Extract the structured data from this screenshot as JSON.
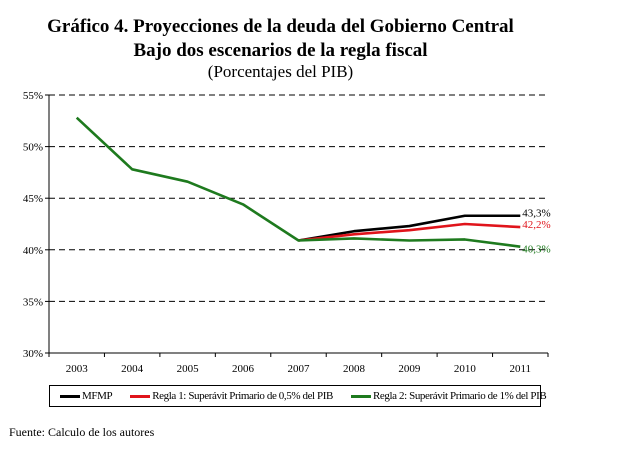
{
  "title": {
    "line1": "Gráfico 4. Proyecciones de la deuda del Gobierno Central",
    "line2": "Bajo dos escenarios de la regla fiscal",
    "line3": "(Porcentajes del PIB)"
  },
  "source": "Fuente: Calculo de los autores",
  "colors": {
    "mfmp": "#000000",
    "regla1": "#e0141b",
    "regla2": "#1e7a1e",
    "grid": "#000000"
  },
  "chart_data": {
    "type": "line",
    "title": "Gráfico 4. Proyecciones de la deuda del Gobierno Central Bajo dos escenarios de la regla fiscal (Porcentajes del PIB)",
    "xlabel": "",
    "ylabel": "",
    "categories": [
      "2003",
      "2004",
      "2005",
      "2006",
      "2007",
      "2008",
      "2009",
      "2010",
      "2011"
    ],
    "ylim": [
      30,
      55
    ],
    "yticks": [
      30,
      35,
      40,
      45,
      50,
      55
    ],
    "ytick_labels": [
      "30%",
      "35%",
      "40%",
      "45%",
      "50%",
      "55%"
    ],
    "grid": "horizontal dashed",
    "legend_position": "bottom",
    "series": [
      {
        "name": "MFMP",
        "color": "#000000",
        "values": [
          null,
          null,
          null,
          null,
          40.9,
          41.8,
          42.3,
          43.3,
          43.3
        ],
        "end_label": "43,3%"
      },
      {
        "name": "Regla 1: Superávit Primario de 0,5% del PIB",
        "color": "#e0141b",
        "values": [
          null,
          null,
          null,
          null,
          40.9,
          41.5,
          41.9,
          42.5,
          42.2
        ],
        "end_label": "42,2%"
      },
      {
        "name": "Regla 2: Superávit Primario de 1% del PIB",
        "color": "#1e7a1e",
        "values": [
          52.8,
          47.8,
          46.6,
          44.4,
          40.9,
          41.1,
          40.9,
          41.0,
          40.3
        ],
        "end_label": "40,3%"
      }
    ]
  }
}
